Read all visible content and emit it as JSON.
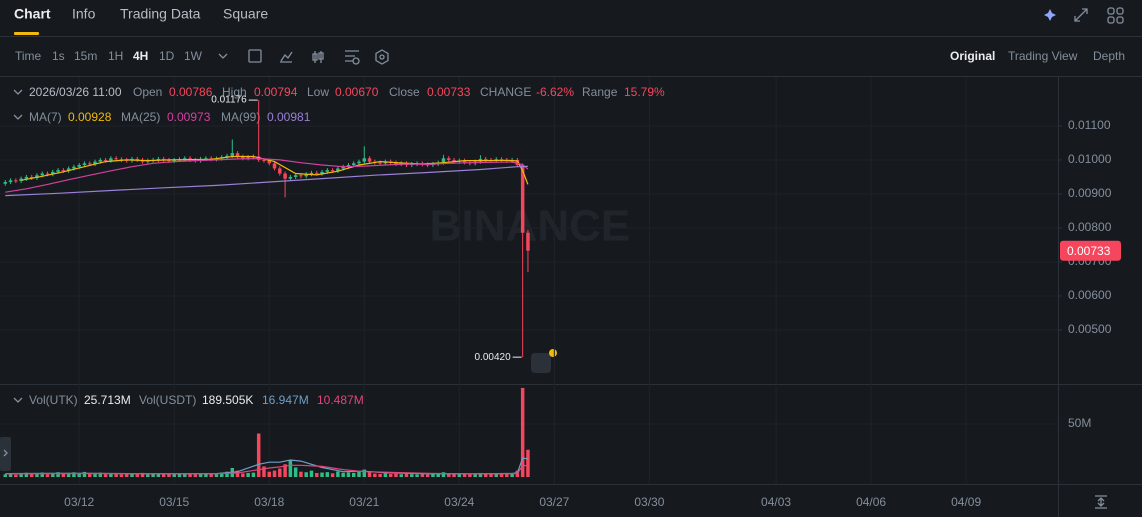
{
  "ui": {
    "tabs": [
      "Chart",
      "Info",
      "Trading Data",
      "Square"
    ],
    "intervals": [
      "Time",
      "1s",
      "15m",
      "1H",
      "4H",
      "1D",
      "1W"
    ],
    "views": [
      "Original",
      "Trading View",
      "Depth"
    ],
    "ohlc_legend": {
      "time": "2026/03/26 11:00",
      "items": [
        {
          "label": "Open",
          "value": "0.00786"
        },
        {
          "label": "High",
          "value": "0.00794"
        },
        {
          "label": "Low",
          "value": "0.00670"
        },
        {
          "label": "Close",
          "value": "0.00733"
        },
        {
          "label": "CHANGE",
          "value": "-6.62%"
        },
        {
          "label": "Range",
          "value": "15.79%"
        }
      ]
    },
    "ma_legend": [
      {
        "label": "MA(7)",
        "value": "0.00928"
      },
      {
        "label": "MA(25)",
        "value": "0.00973"
      },
      {
        "label": "MA(99)",
        "value": "0.00981"
      }
    ],
    "volume_legend": {
      "base_label": "Vol(UTK)",
      "base_value": "25.713M",
      "quote_label": "Vol(USDT)",
      "quote_value": "189.505K",
      "ma_values": [
        "16.947M",
        "10.487M"
      ]
    },
    "watermark": "BINANCE"
  },
  "chart_data": {
    "type": "candlestick",
    "xlim": [
      -1,
      199.4
    ],
    "xticks": [
      {
        "value": 14,
        "label": "03/12"
      },
      {
        "value": 32,
        "label": "03/15"
      },
      {
        "value": 50,
        "label": "03/18"
      },
      {
        "value": 68,
        "label": "03/21"
      },
      {
        "value": 86,
        "label": "03/24"
      },
      {
        "value": 104,
        "label": "03/27"
      },
      {
        "value": 122,
        "label": "03/30"
      },
      {
        "value": 146,
        "label": "04/03"
      },
      {
        "value": 164,
        "label": "04/06"
      },
      {
        "value": 182,
        "label": "04/09"
      }
    ],
    "ylim": [
      0.00344,
      0.01241
    ],
    "yticks": [
      {
        "value": 0.011,
        "label": "0.01100"
      },
      {
        "value": 0.01,
        "label": "0.01000"
      },
      {
        "value": 0.009,
        "label": "0.00900"
      },
      {
        "value": 0.008,
        "label": "0.00800"
      },
      {
        "value": 0.007,
        "label": "0.00700"
      },
      {
        "value": 0.006,
        "label": "0.00600"
      },
      {
        "value": 0.005,
        "label": "0.00500"
      }
    ],
    "up_color": "#2ebd85",
    "down_color": "#f6465d",
    "open": [
      0.0093,
      0.00935,
      0.0094,
      0.00938,
      0.00945,
      0.0095,
      0.00947,
      0.00955,
      0.0096,
      0.00958,
      0.00965,
      0.0097,
      0.00968,
      0.00975,
      0.0098,
      0.00985,
      0.0099,
      0.00988,
      0.00995,
      0.01,
      0.00998,
      0.01005,
      0.01002,
      0.01,
      0.00998,
      0.01003,
      0.01,
      0.00995,
      0.00998,
      0.01,
      0.01003,
      0.01,
      0.00997,
      0.01,
      0.01002,
      0.01005,
      0.01,
      0.00998,
      0.01003,
      0.01005,
      0.01002,
      0.01004,
      0.01008,
      0.01012,
      0.0102,
      0.0101,
      0.01005,
      0.01008,
      0.0101,
      0.01,
      0.00998,
      0.0099,
      0.00975,
      0.0096,
      0.00945,
      0.0095,
      0.00955,
      0.00952,
      0.00958,
      0.00962,
      0.0096,
      0.00965,
      0.0097,
      0.00968,
      0.00975,
      0.0098,
      0.00985,
      0.0099,
      0.00995,
      0.01005,
      0.00995,
      0.00992,
      0.0099,
      0.00995,
      0.00992,
      0.00988,
      0.0099,
      0.00985,
      0.00988,
      0.0099,
      0.00987,
      0.00985,
      0.00988,
      0.00992,
      0.01005,
      0.01,
      0.00995,
      0.00998,
      0.00993,
      0.0099,
      0.00995,
      0.01003,
      0.01,
      0.00998,
      0.01002,
      0.01,
      0.00997,
      0.01,
      0.00985,
      0.00786
    ],
    "high": [
      0.00941,
      0.00946,
      0.00946,
      0.00951,
      0.00956,
      0.00956,
      0.00961,
      0.00966,
      0.00966,
      0.00971,
      0.00976,
      0.00976,
      0.00981,
      0.00986,
      0.00991,
      0.00996,
      0.00996,
      0.01001,
      0.01006,
      0.01006,
      0.01011,
      0.01011,
      0.01008,
      0.01006,
      0.01009,
      0.01009,
      0.01006,
      0.01004,
      0.01006,
      0.01009,
      0.01009,
      0.01006,
      0.01006,
      0.01008,
      0.01011,
      0.01011,
      0.01006,
      0.01009,
      0.01011,
      0.01011,
      0.0101,
      0.01014,
      0.01018,
      0.0106,
      0.01026,
      0.01016,
      0.01014,
      0.01016,
      0.01176,
      0.01006,
      0.01004,
      0.00996,
      0.00981,
      0.00966,
      0.00956,
      0.00961,
      0.00961,
      0.00964,
      0.00968,
      0.00968,
      0.00971,
      0.00976,
      0.00976,
      0.00981,
      0.00986,
      0.00991,
      0.00996,
      0.01001,
      0.0104,
      0.01011,
      0.01001,
      0.00998,
      0.01001,
      0.01001,
      0.00998,
      0.00996,
      0.00996,
      0.00994,
      0.00996,
      0.00996,
      0.00993,
      0.00994,
      0.00998,
      0.01015,
      0.01011,
      0.01006,
      0.01004,
      0.01004,
      0.00999,
      0.01001,
      0.01014,
      0.01009,
      0.01006,
      0.01008,
      0.01008,
      0.01006,
      0.01006,
      0.01006,
      0.0099,
      0.00794
    ],
    "low": [
      0.00924,
      0.00929,
      0.00932,
      0.00932,
      0.00939,
      0.00941,
      0.00941,
      0.00949,
      0.00952,
      0.00952,
      0.00959,
      0.00962,
      0.00962,
      0.00969,
      0.00974,
      0.00979,
      0.00982,
      0.00982,
      0.00989,
      0.00992,
      0.00992,
      0.00996,
      0.00994,
      0.00992,
      0.00992,
      0.00994,
      0.00989,
      0.00989,
      0.00992,
      0.00994,
      0.00994,
      0.00991,
      0.00991,
      0.00994,
      0.00996,
      0.00994,
      0.00992,
      0.00992,
      0.00997,
      0.00996,
      0.00996,
      0.00998,
      0.01002,
      0.01006,
      0.01004,
      0.00999,
      0.00999,
      0.01002,
      0.00994,
      0.00992,
      0.00984,
      0.00969,
      0.00954,
      0.0089,
      0.00939,
      0.00944,
      0.00946,
      0.00946,
      0.00952,
      0.00954,
      0.00954,
      0.00959,
      0.00962,
      0.00962,
      0.00969,
      0.00974,
      0.00979,
      0.00984,
      0.00989,
      0.00989,
      0.00986,
      0.00984,
      0.00984,
      0.00986,
      0.00982,
      0.00982,
      0.00979,
      0.00979,
      0.00982,
      0.00981,
      0.00979,
      0.00979,
      0.00982,
      0.00986,
      0.00994,
      0.00989,
      0.00989,
      0.00987,
      0.00984,
      0.00984,
      0.00989,
      0.00994,
      0.00992,
      0.00992,
      0.00994,
      0.00991,
      0.00991,
      0.00979,
      0.0042,
      0.0067
    ],
    "close": [
      0.00935,
      0.0094,
      0.00938,
      0.00945,
      0.0095,
      0.00947,
      0.00955,
      0.0096,
      0.00958,
      0.00965,
      0.0097,
      0.00968,
      0.00975,
      0.0098,
      0.00985,
      0.0099,
      0.00988,
      0.00995,
      0.01,
      0.00998,
      0.01005,
      0.01002,
      0.01,
      0.00998,
      0.01003,
      0.01,
      0.00995,
      0.00998,
      0.01,
      0.01003,
      0.01,
      0.00997,
      0.01,
      0.01002,
      0.01005,
      0.01,
      0.00998,
      0.01003,
      0.01005,
      0.01002,
      0.01004,
      0.01008,
      0.01012,
      0.0102,
      0.0101,
      0.01005,
      0.01008,
      0.0101,
      0.01,
      0.00998,
      0.0099,
      0.00975,
      0.0096,
      0.00945,
      0.0095,
      0.00955,
      0.00952,
      0.00958,
      0.00962,
      0.0096,
      0.00965,
      0.0097,
      0.00968,
      0.00975,
      0.0098,
      0.00985,
      0.0099,
      0.00995,
      0.01005,
      0.00995,
      0.00992,
      0.0099,
      0.00995,
      0.00992,
      0.00988,
      0.0099,
      0.00985,
      0.00988,
      0.0099,
      0.00987,
      0.00985,
      0.00988,
      0.00992,
      0.01005,
      0.01,
      0.00995,
      0.00998,
      0.00993,
      0.0099,
      0.00995,
      0.01003,
      0.01,
      0.00998,
      0.01002,
      0.01,
      0.00997,
      0.01,
      0.00985,
      0.00786,
      0.00733
    ],
    "volume": [
      2500000,
      3000000,
      2200000,
      3500000,
      4000000,
      2800000,
      3600000,
      4200000,
      2600000,
      3800000,
      4500000,
      3000000,
      3900000,
      4400000,
      3200000,
      4800000,
      2900000,
      3500000,
      4100000,
      2700000,
      3600000,
      3100000,
      2400000,
      2800000,
      3300000,
      2600000,
      3900000,
      2500000,
      3000000,
      3400000,
      2700000,
      2900000,
      2600000,
      3100000,
      3500000,
      2800000,
      2400000,
      3200000,
      3600000,
      2900000,
      3300000,
      4200000,
      5000000,
      8500000,
      6000000,
      3400000,
      3800000,
      4100000,
      41000000,
      10000000,
      5000000,
      6000000,
      8000000,
      12000000,
      16000000,
      9000000,
      5000000,
      4500000,
      6000000,
      3800000,
      4200000,
      4600000,
      3500000,
      5200000,
      4000000,
      4400000,
      3900000,
      4800000,
      7000000,
      4500000,
      3200000,
      2900000,
      3400000,
      2800000,
      3000000,
      2600000,
      3100000,
      2700000,
      2500000,
      2800000,
      2400000,
      2900000,
      3200000,
      4500000,
      3400000,
      3000000,
      2700000,
      2900000,
      2600000,
      3000000,
      3800000,
      3200000,
      2800000,
      3100000,
      2900000,
      3300000,
      3500000,
      6000000,
      84000000,
      25713000
    ],
    "volume_ylim": [
      0,
      85800000
    ],
    "volume_yticks": [
      {
        "value": 50000000,
        "label": "50M"
      }
    ],
    "ma_lines": [
      {
        "name": "MA(7)",
        "color": "#f0b90b",
        "x": [
          3,
          7,
          11,
          15,
          19,
          23,
          27,
          31,
          35,
          39,
          43,
          47,
          51,
          55,
          59,
          63,
          67,
          71,
          75,
          79,
          83,
          87,
          91,
          95,
          97,
          98,
          99
        ],
        "values": [
          0.0094,
          0.00952,
          0.00965,
          0.0098,
          0.00995,
          0.01,
          0.00998,
          0.01,
          0.01001,
          0.01002,
          0.0101,
          0.0101,
          0.00995,
          0.0096,
          0.00956,
          0.00967,
          0.00985,
          0.00995,
          0.00991,
          0.00988,
          0.00992,
          0.00998,
          0.00998,
          0.00999,
          0.00997,
          0.00968,
          0.00928
        ]
      },
      {
        "name": "MA(25)",
        "color": "#d63fa0",
        "x": [
          0,
          4,
          8,
          12,
          16,
          20,
          24,
          28,
          32,
          36,
          40,
          44,
          48,
          52,
          56,
          60,
          64,
          68,
          72,
          76,
          80,
          84,
          88,
          92,
          96,
          98,
          99
        ],
        "values": [
          0.00905,
          0.00915,
          0.00928,
          0.00942,
          0.00955,
          0.00968,
          0.0098,
          0.0099,
          0.00995,
          0.00998,
          0.01,
          0.01003,
          0.01004,
          0.01,
          0.00992,
          0.00985,
          0.0098,
          0.00982,
          0.00985,
          0.00988,
          0.00987,
          0.0099,
          0.00992,
          0.00993,
          0.00994,
          0.00986,
          0.00973
        ]
      },
      {
        "name": "MA(99)",
        "color": "#9b7fd8",
        "x": [
          0,
          10,
          20,
          30,
          40,
          50,
          60,
          70,
          80,
          90,
          97,
          99
        ],
        "values": [
          0.00895,
          0.00902,
          0.0091,
          0.00918,
          0.00925,
          0.00935,
          0.00945,
          0.00955,
          0.00963,
          0.00972,
          0.0098,
          0.00981
        ]
      }
    ],
    "volume_ma_lines": [
      {
        "color": "#6f9fc6",
        "x": [
          0,
          8,
          16,
          24,
          32,
          40,
          44,
          48,
          50,
          52,
          54,
          56,
          60,
          64,
          68,
          72,
          80,
          88,
          96,
          97,
          98,
          99
        ],
        "values": [
          3200000,
          3400000,
          3500000,
          3100000,
          3000000,
          3200000,
          5000000,
          12000000,
          14000000,
          14000000,
          16000000,
          15000000,
          9000000,
          5000000,
          5500000,
          4000000,
          3000000,
          3000000,
          3300000,
          4000000,
          18000000,
          16947000
        ]
      },
      {
        "color": "#e0457b",
        "x": [
          0,
          8,
          16,
          24,
          32,
          40,
          44,
          48,
          50,
          52,
          54,
          56,
          60,
          64,
          68,
          72,
          80,
          88,
          96,
          97,
          98,
          99
        ],
        "values": [
          3000000,
          3200000,
          3300000,
          3200000,
          3100000,
          3100000,
          3800000,
          7000000,
          8500000,
          9500000,
          11000000,
          11000000,
          10000000,
          7000000,
          5000000,
          4500000,
          3500000,
          3000000,
          3100000,
          3300000,
          11000000,
          10487000
        ]
      }
    ],
    "annotations": [
      {
        "x": 48,
        "value": 0.01176,
        "label": "0.01176"
      },
      {
        "x": 98,
        "value": 0.0042,
        "label": "0.00420"
      }
    ],
    "last_price": {
      "value": 0.00733,
      "label": "0.00733"
    }
  }
}
